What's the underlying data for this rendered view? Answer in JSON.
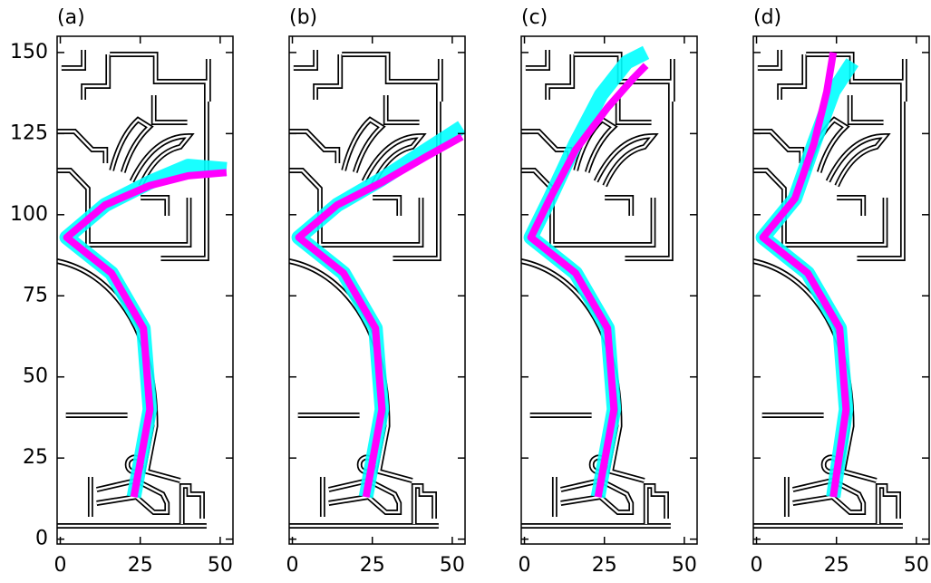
{
  "chart_data": {
    "type": "line",
    "xlim": [
      -1,
      54
    ],
    "ylim": [
      -1.5,
      155
    ],
    "xticks": [
      0,
      25,
      50
    ],
    "yticks": [
      0,
      25,
      50,
      75,
      100,
      125,
      150
    ],
    "panels": [
      {
        "label": "(a)",
        "series": [
          {
            "color": "#00ffff",
            "x": [
              23,
              28,
              26,
              16,
              2,
              14,
              28,
              40,
              52
            ],
            "y": [
              13,
              40,
              65,
              82,
              93,
              103,
              110,
              115,
              114
            ]
          },
          {
            "color": "#ff00ff",
            "x": [
              23,
              28,
              26,
              16,
              2,
              14,
              28,
              40,
              52
            ],
            "y": [
              13,
              40,
              65,
              82,
              93,
              103,
              109,
              112,
              113
            ]
          }
        ]
      },
      {
        "label": "(b)",
        "series": [
          {
            "color": "#00ffff",
            "x": [
              23,
              28,
              26,
              16,
              2,
              14,
              28,
              42,
              53
            ],
            "y": [
              13,
              40,
              65,
              82,
              93,
              103,
              111,
              120,
              127
            ]
          },
          {
            "color": "#ff00ff",
            "x": [
              23,
              28,
              26,
              16,
              2,
              14,
              28,
              42,
              53
            ],
            "y": [
              13,
              40,
              65,
              82,
              93,
              103,
              110,
              118,
              124
            ]
          }
        ]
      },
      {
        "label": "(c)",
        "series": [
          {
            "color": "#00ffff",
            "x": [
              23,
              28,
              26,
              16,
              2,
              8,
              16,
              24,
              32,
              38
            ],
            "y": [
              13,
              40,
              65,
              82,
              93,
              105,
              122,
              137,
              147,
              150
            ]
          },
          {
            "color": "#ff00ff",
            "x": [
              23,
              28,
              26,
              16,
              2,
              8,
              16,
              26,
              34,
              38
            ],
            "y": [
              13,
              40,
              65,
              82,
              93,
              105,
              120,
              133,
              142,
              146
            ]
          }
        ]
      },
      {
        "label": "(d)",
        "series": [
          {
            "color": "#00ffff",
            "x": [
              24,
              28,
              26,
              16,
              2,
              12,
              18,
              24,
              30
            ],
            "y": [
              13,
              40,
              65,
              82,
              93,
              105,
              122,
              138,
              147
            ]
          },
          {
            "color": "#ff00ff",
            "x": [
              24,
              28,
              26,
              16,
              2,
              12,
              18,
              22,
              24
            ],
            "y": [
              13,
              40,
              65,
              82,
              93,
              105,
              122,
              138,
              150
            ]
          }
        ]
      }
    ]
  }
}
